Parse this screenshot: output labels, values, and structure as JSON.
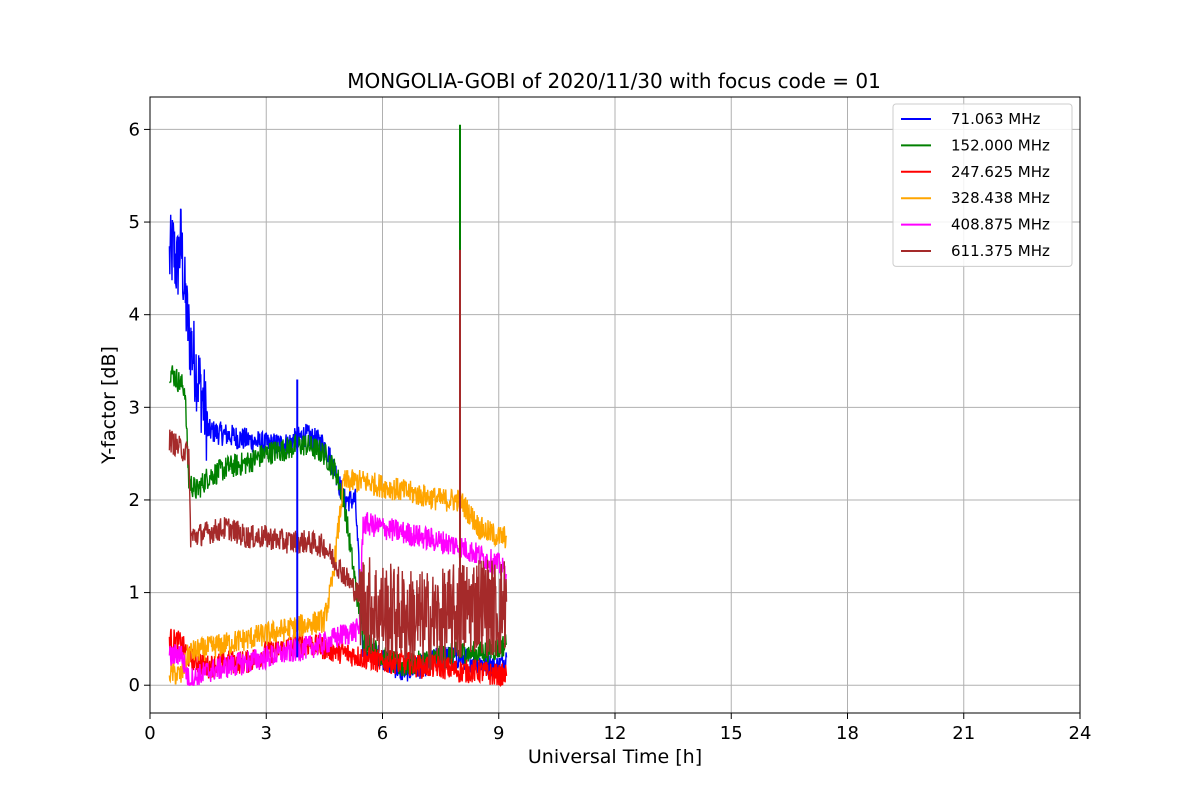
{
  "chart_data": {
    "type": "line",
    "title": "MONGOLIA-GOBI of 2020/11/30 with focus code = 01",
    "xlabel": "Universal Time [h]",
    "ylabel": "Y-factor [dB]",
    "xlim": [
      0,
      24
    ],
    "ylim": [
      -0.3,
      6.35
    ],
    "xticks": [
      0,
      3,
      6,
      9,
      12,
      15,
      18,
      21,
      24
    ],
    "yticks": [
      0,
      1,
      2,
      3,
      4,
      5,
      6
    ],
    "grid": true,
    "legend_position": "top-right",
    "series": [
      {
        "name": " 71.063 MHz",
        "color": "#0000ff",
        "x": [
          0.5,
          0.6,
          0.7,
          0.8,
          0.9,
          1.0,
          1.1,
          1.2,
          1.3,
          1.4,
          1.5,
          2.0,
          2.5,
          3.0,
          3.5,
          4.0,
          4.5,
          4.8,
          5.0,
          5.3,
          5.5,
          6.0,
          6.5,
          7.0,
          7.5,
          8.0,
          8.5,
          9.0,
          9.2
        ],
        "y": [
          4.6,
          4.7,
          4.5,
          4.8,
          4.2,
          3.8,
          3.6,
          3.4,
          3.2,
          3.0,
          2.75,
          2.7,
          2.65,
          2.6,
          2.6,
          2.7,
          2.6,
          2.3,
          2.0,
          2.0,
          0.4,
          0.3,
          0.15,
          0.2,
          0.3,
          0.3,
          0.25,
          0.2,
          0.3
        ]
      },
      {
        "name": "152.000 MHz",
        "color": "#008000",
        "x": [
          0.5,
          0.7,
          0.9,
          1.0,
          1.2,
          1.5,
          2.0,
          2.5,
          3.0,
          3.5,
          4.0,
          4.5,
          4.8,
          5.0,
          5.5,
          6.0,
          6.5,
          7.0,
          7.5,
          8.0,
          8.5,
          9.0,
          9.2
        ],
        "y": [
          3.4,
          3.3,
          3.2,
          2.2,
          2.1,
          2.25,
          2.35,
          2.4,
          2.5,
          2.55,
          2.6,
          2.5,
          2.3,
          2.0,
          0.5,
          0.3,
          0.2,
          0.25,
          0.3,
          0.35,
          0.35,
          0.4,
          0.45
        ]
      },
      {
        "name": "247.625 MHz",
        "color": "#ff0000",
        "x": [
          0.5,
          0.8,
          1.0,
          1.5,
          2.0,
          2.5,
          3.0,
          3.5,
          4.0,
          4.5,
          5.0,
          5.5,
          6.0,
          6.5,
          7.0,
          7.5,
          8.0,
          8.5,
          9.0,
          9.2
        ],
        "y": [
          0.5,
          0.45,
          0.3,
          0.2,
          0.25,
          0.25,
          0.35,
          0.4,
          0.45,
          0.4,
          0.35,
          0.3,
          0.25,
          0.25,
          0.2,
          0.2,
          0.15,
          0.15,
          0.1,
          0.1
        ]
      },
      {
        "name": "328.438 MHz",
        "color": "#ffa500",
        "x": [
          0.5,
          0.8,
          1.0,
          1.5,
          2.0,
          2.5,
          3.0,
          3.5,
          4.0,
          4.5,
          4.7,
          5.0,
          5.5,
          6.0,
          6.5,
          7.0,
          7.5,
          8.0,
          8.5,
          9.0,
          9.2
        ],
        "y": [
          0.15,
          0.1,
          0.35,
          0.4,
          0.45,
          0.5,
          0.55,
          0.6,
          0.65,
          0.7,
          1.1,
          2.2,
          2.2,
          2.15,
          2.1,
          2.05,
          2.0,
          2.0,
          1.7,
          1.6,
          1.6
        ]
      },
      {
        "name": "408.875 MHz",
        "color": "#ff00ff",
        "x": [
          0.5,
          0.8,
          1.0,
          1.5,
          2.0,
          2.5,
          3.0,
          3.5,
          4.0,
          4.5,
          5.0,
          5.4,
          5.5,
          6.0,
          6.5,
          7.0,
          7.5,
          8.0,
          8.5,
          9.0,
          9.2
        ],
        "y": [
          0.3,
          0.35,
          0.05,
          0.15,
          0.2,
          0.25,
          0.3,
          0.35,
          0.4,
          0.45,
          0.55,
          0.6,
          1.75,
          1.7,
          1.65,
          1.6,
          1.55,
          1.5,
          1.4,
          1.3,
          1.2
        ]
      },
      {
        "name": "611.375 MHz",
        "color": "#a52a2a",
        "x": [
          0.5,
          0.8,
          1.0,
          1.05,
          1.5,
          2.0,
          2.5,
          3.0,
          3.5,
          4.0,
          4.5,
          5.0,
          5.5,
          6.0,
          6.5,
          7.0,
          7.5,
          8.0,
          8.5,
          9.0,
          9.2
        ],
        "y": [
          2.65,
          2.55,
          2.5,
          1.6,
          1.65,
          1.7,
          1.6,
          1.6,
          1.55,
          1.55,
          1.5,
          1.2,
          0.9,
          0.8,
          0.75,
          0.7,
          0.7,
          0.8,
          0.9,
          0.8,
          0.9
        ]
      }
    ],
    "spikes": [
      {
        "series": " 71.063 MHz",
        "x": 3.8,
        "y": 3.3
      },
      {
        "series": "152.000 MHz",
        "x": 8.0,
        "y": 6.05
      },
      {
        "series": "611.375 MHz",
        "x": 8.0,
        "y": 4.7
      }
    ]
  }
}
